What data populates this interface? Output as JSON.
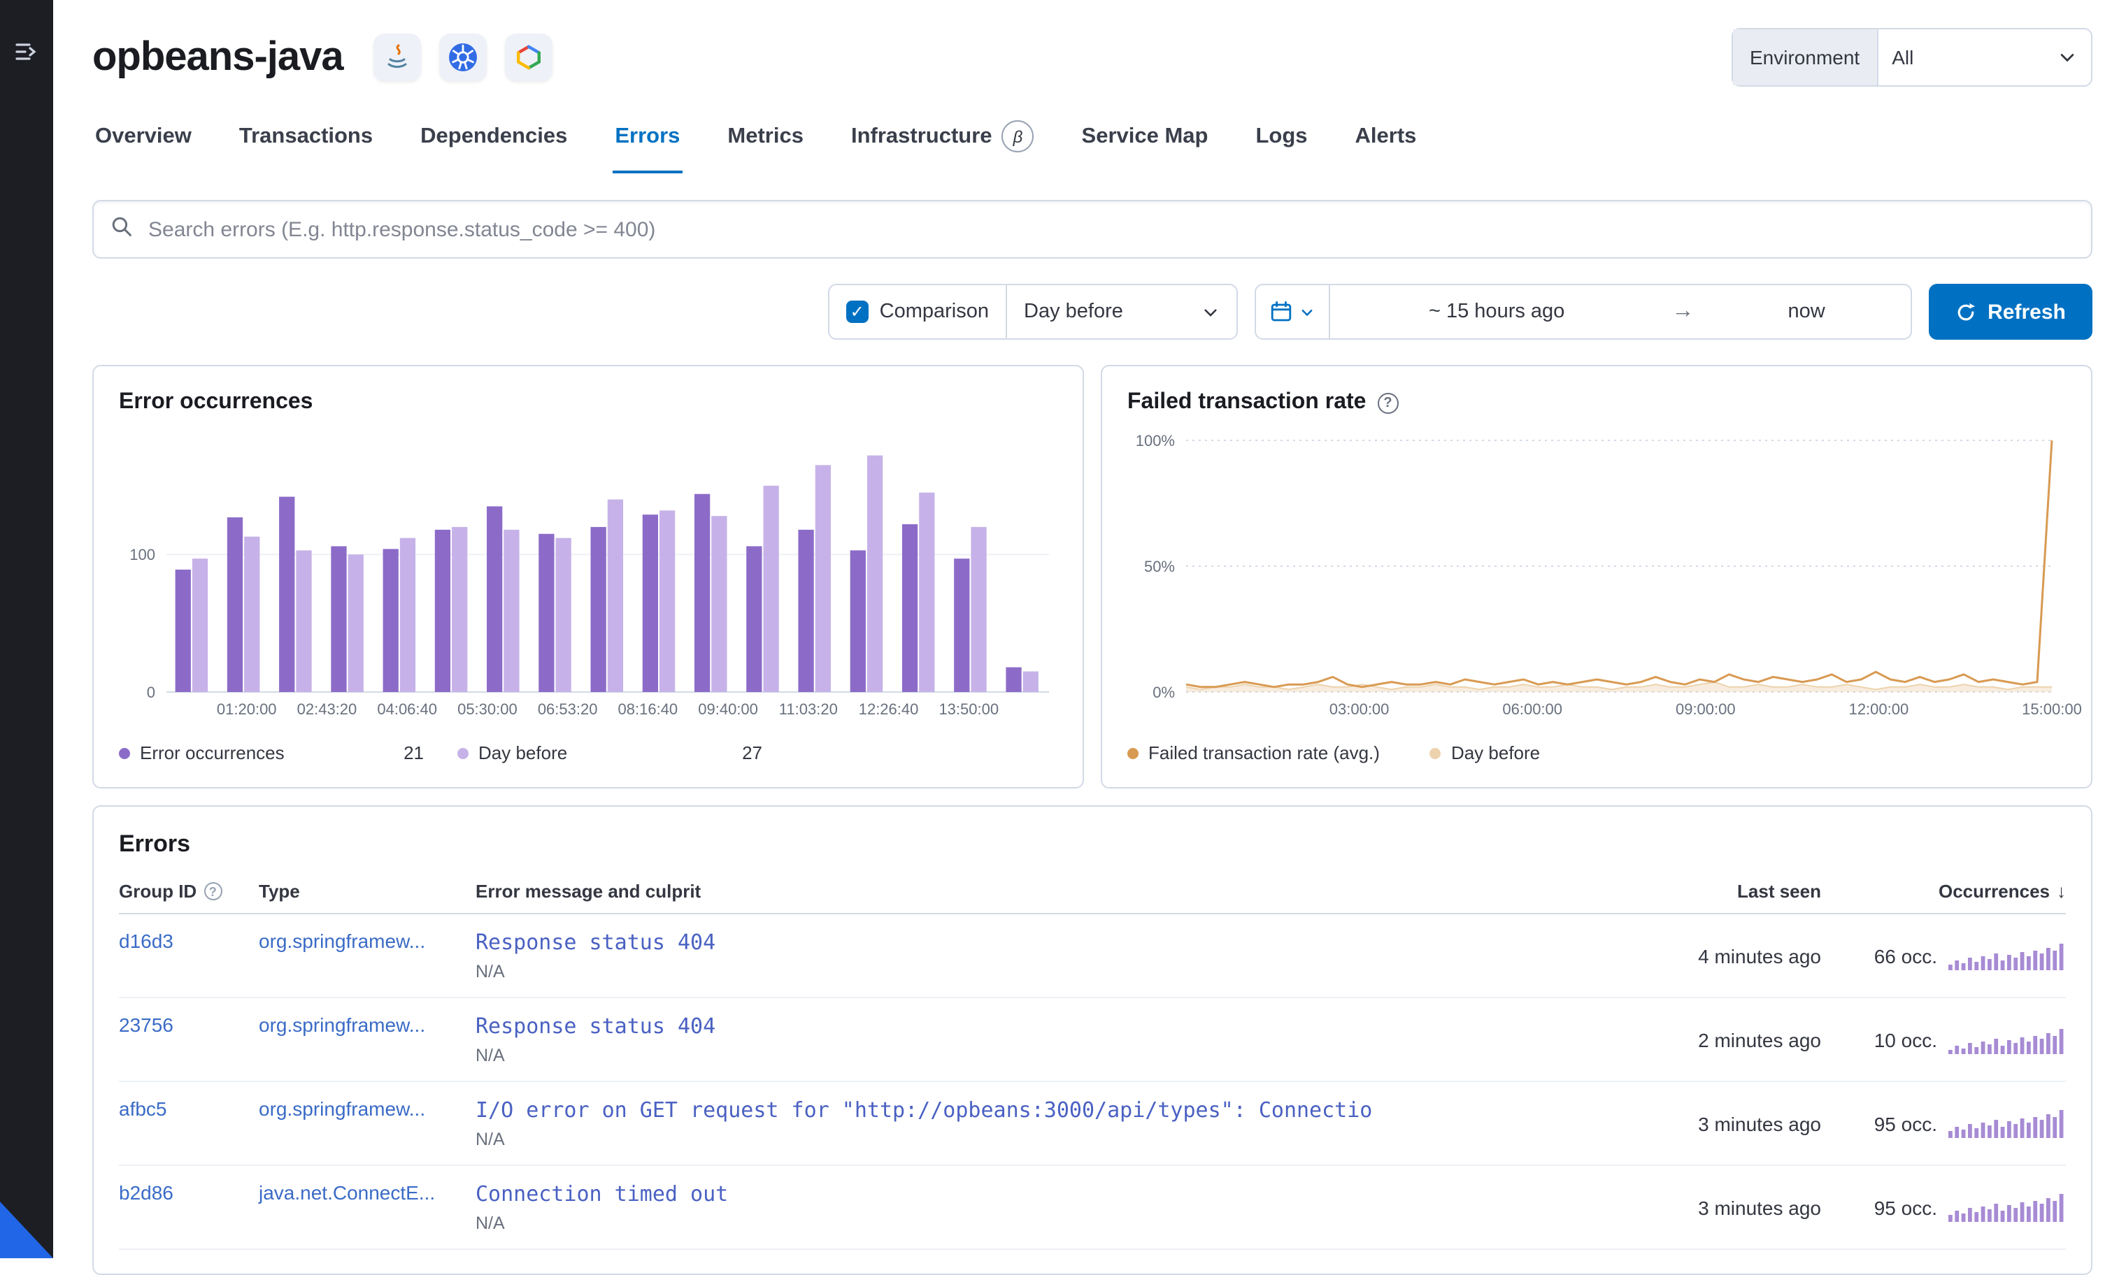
{
  "header": {
    "service_name": "opbeans-java"
  },
  "environment": {
    "label": "Environment",
    "value": "All"
  },
  "tabs": [
    {
      "label": "Overview"
    },
    {
      "label": "Transactions"
    },
    {
      "label": "Dependencies"
    },
    {
      "label": "Errors"
    },
    {
      "label": "Metrics"
    },
    {
      "label": "Infrastructure",
      "beta": "β"
    },
    {
      "label": "Service Map"
    },
    {
      "label": "Logs"
    },
    {
      "label": "Alerts"
    }
  ],
  "search": {
    "placeholder": "Search errors (E.g. http.response.status_code >= 400)"
  },
  "controls": {
    "comparison_label": "Comparison",
    "comparison_period": "Day before",
    "range_start": "~ 15 hours ago",
    "range_end": "now",
    "refresh_label": "Refresh"
  },
  "icons": {
    "checkbox_check": "✓",
    "arrow_right": "→",
    "sort_desc": "↓",
    "help": "?"
  },
  "chart_data": [
    {
      "type": "bar",
      "title": "Error occurrences",
      "xticks": [
        "01:20:00",
        "02:43:20",
        "04:06:40",
        "05:30:00",
        "06:53:20",
        "08:16:40",
        "09:40:00",
        "11:03:20",
        "12:26:40",
        "13:50:00"
      ],
      "yticks": [
        100,
        0
      ],
      "ylim": [
        0,
        185
      ],
      "series": [
        {
          "name": "Error occurrences",
          "color": "#8c6bc8",
          "values": [
            89,
            127,
            142,
            106,
            104,
            118,
            135,
            115,
            120,
            129,
            144,
            106,
            118,
            103,
            122,
            97,
            18
          ]
        },
        {
          "name": "Day before",
          "color": "#c6b2e8",
          "values": [
            97,
            113,
            103,
            100,
            112,
            120,
            118,
            112,
            140,
            132,
            128,
            150,
            165,
            172,
            145,
            120,
            15
          ]
        }
      ],
      "legend": [
        {
          "label": "Error occurrences",
          "value": "21",
          "color": "#8c6bc8"
        },
        {
          "label": "Day before",
          "value": "27",
          "color": "#c6b2e8"
        }
      ]
    },
    {
      "type": "line",
      "title": "Failed transaction rate",
      "xticks": [
        "03:00:00",
        "06:00:00",
        "09:00:00",
        "12:00:00",
        "15:00:00"
      ],
      "yticks": [
        0,
        50,
        100
      ],
      "ytick_labels": [
        "0%",
        "50%",
        "100%"
      ],
      "ylim": [
        0,
        100
      ],
      "series": [
        {
          "name": "Failed transaction rate (avg.)",
          "color": "#d89a52",
          "values": [
            3,
            2,
            2,
            3,
            4,
            3,
            2,
            3,
            3,
            4,
            6,
            3,
            2,
            3,
            4,
            3,
            3,
            4,
            3,
            5,
            4,
            3,
            4,
            5,
            3,
            4,
            3,
            4,
            5,
            4,
            3,
            4,
            6,
            4,
            3,
            5,
            4,
            7,
            5,
            4,
            6,
            5,
            4,
            5,
            7,
            4,
            5,
            8,
            5,
            4,
            6,
            4,
            5,
            7,
            4,
            5,
            4,
            3,
            4,
            100
          ]
        },
        {
          "name": "Day before",
          "color": "#ecd3ae",
          "fill": "rgba(233,201,160,0.35)",
          "values": [
            2,
            1,
            2,
            2,
            3,
            2,
            2,
            1,
            2,
            3,
            2,
            2,
            3,
            2,
            1,
            2,
            2,
            3,
            2,
            2,
            1,
            2,
            2,
            3,
            2,
            2,
            3,
            2,
            2,
            1,
            2,
            2,
            3,
            2,
            2,
            3,
            4,
            2,
            2,
            3,
            2,
            2,
            3,
            2,
            2,
            3,
            2,
            1,
            2,
            2,
            3,
            2,
            2,
            3,
            2,
            2,
            1,
            2,
            2,
            2
          ]
        }
      ],
      "legend": [
        {
          "label": "Failed transaction rate (avg.)",
          "color": "#d89a52"
        },
        {
          "label": "Day before",
          "color": "#ecd3ae"
        }
      ]
    }
  ],
  "errors": {
    "title": "Errors",
    "columns": {
      "group_id": "Group ID",
      "type": "Type",
      "message": "Error message and culprit",
      "last_seen": "Last seen",
      "occurrences": "Occurrences"
    },
    "rows": [
      {
        "group_id": "d16d3",
        "type": "org.springframew...",
        "message": "Response status 404",
        "culprit": "N/A",
        "last_seen": "4 minutes ago",
        "occurrences": "66 occ.",
        "sparkline": [
          20,
          35,
          25,
          45,
          30,
          50,
          40,
          60,
          35,
          55,
          45,
          65,
          50,
          70,
          60,
          80,
          70,
          95
        ]
      },
      {
        "group_id": "23756",
        "type": "org.springframew...",
        "message": "Response status 404",
        "culprit": "N/A",
        "last_seen": "2 minutes ago",
        "occurrences": "10 occ.",
        "sparkline": [
          15,
          30,
          20,
          40,
          25,
          45,
          35,
          55,
          30,
          50,
          40,
          60,
          45,
          65,
          55,
          75,
          65,
          90
        ]
      },
      {
        "group_id": "afbc5",
        "type": "org.springframew...",
        "message": "I/O error on GET request for \"http://opbeans:3000/api/types\": Connectio",
        "culprit": "N/A",
        "last_seen": "3 minutes ago",
        "occurrences": "95 occ.",
        "sparkline": [
          25,
          40,
          30,
          50,
          35,
          55,
          45,
          65,
          40,
          60,
          50,
          70,
          55,
          75,
          65,
          85,
          75,
          100
        ]
      },
      {
        "group_id": "b2d86",
        "type": "java.net.ConnectE...",
        "message": "Connection timed out",
        "culprit": "N/A",
        "last_seen": "3 minutes ago",
        "occurrences": "95 occ.",
        "sparkline": [
          25,
          40,
          30,
          50,
          35,
          55,
          45,
          65,
          40,
          60,
          50,
          70,
          55,
          75,
          65,
          85,
          75,
          100
        ]
      }
    ]
  }
}
